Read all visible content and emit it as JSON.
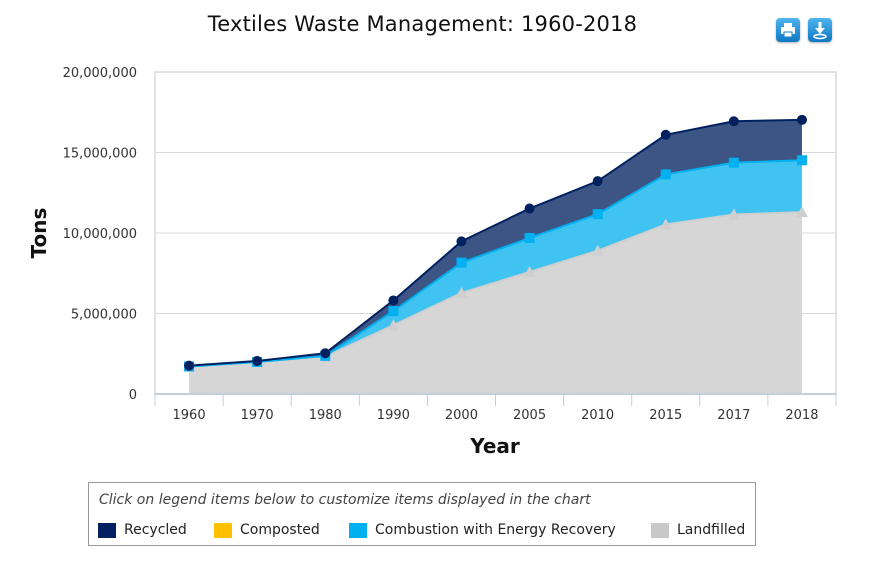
{
  "chart_data": {
    "type": "area",
    "stacked": true,
    "title": "Textiles Waste Management: 1960-2018",
    "xlabel": "Year",
    "ylabel": "Tons",
    "categories": [
      "1960",
      "1970",
      "1980",
      "1990",
      "2000",
      "2005",
      "2010",
      "2015",
      "2017",
      "2018"
    ],
    "ylim": [
      0,
      20000000
    ],
    "yticks": [
      0,
      5000000,
      10000000,
      15000000,
      20000000
    ],
    "ytick_labels": [
      "0",
      "5,000,000",
      "10,000,000",
      "15,000,000",
      "20,000,000"
    ],
    "grid": true,
    "series": [
      {
        "name": "Landfilled",
        "color": "#d6d6d6",
        "line_color": "#cfcfcf",
        "marker": "triangle",
        "values": [
          1710000,
          1980000,
          2320000,
          4270000,
          6280000,
          7580000,
          8900000,
          10530000,
          11150000,
          11300000
        ]
      },
      {
        "name": "Combustion with Energy Recovery",
        "color": "#41c3f2",
        "line_color": "#00b0f0",
        "marker": "square",
        "values": [
          0,
          10000,
          50000,
          880000,
          1880000,
          2110000,
          2270000,
          3110000,
          3220000,
          3220000
        ]
      },
      {
        "name": "Composted",
        "color": "#ffc000",
        "line_color": "#ffc000",
        "marker": "diamond",
        "values": [
          0,
          0,
          0,
          0,
          0,
          0,
          0,
          0,
          0,
          0
        ]
      },
      {
        "name": "Recycled",
        "color": "#3d5585",
        "line_color": "#002060",
        "marker": "circle",
        "values": [
          50000,
          60000,
          160000,
          660000,
          1320000,
          1830000,
          2050000,
          2460000,
          2570000,
          2510000
        ]
      }
    ]
  },
  "toolbar": {
    "print_icon": "printer-icon",
    "download_icon": "download-icon"
  },
  "legend": {
    "hint": "Click on legend items below to customize items displayed in the chart",
    "items": [
      {
        "label": "Recycled",
        "color": "#002060"
      },
      {
        "label": "Composted",
        "color": "#ffc000"
      },
      {
        "label": "Combustion with Energy Recovery",
        "color": "#00b0f0"
      },
      {
        "label": "Landfilled",
        "color": "#c8c8c8"
      }
    ]
  }
}
